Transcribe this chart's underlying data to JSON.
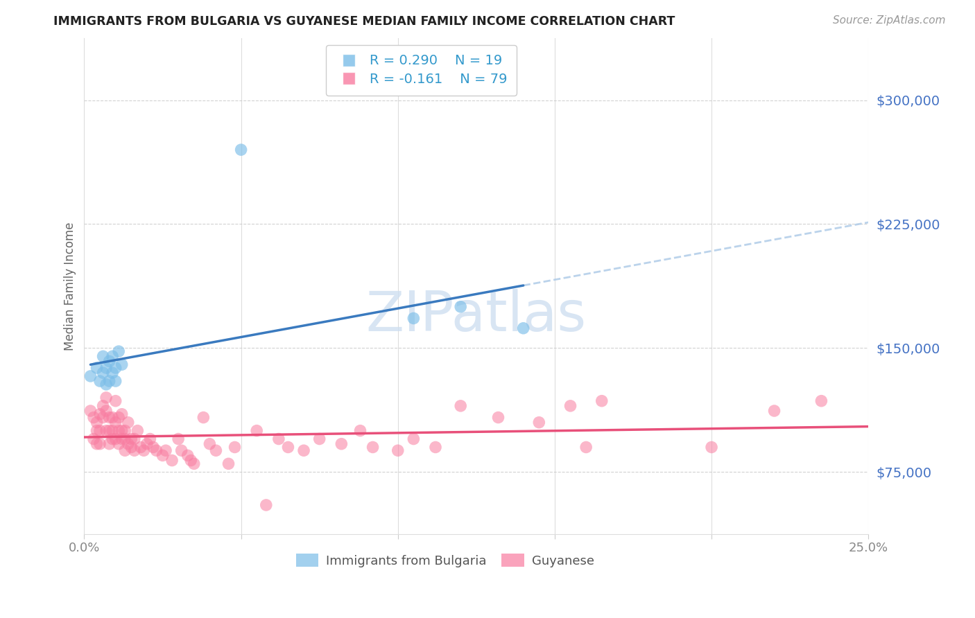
{
  "title": "IMMIGRANTS FROM BULGARIA VS GUYANESE MEDIAN FAMILY INCOME CORRELATION CHART",
  "source": "Source: ZipAtlas.com",
  "ylabel": "Median Family Income",
  "ytick_labels": [
    "$75,000",
    "$150,000",
    "$225,000",
    "$300,000"
  ],
  "ytick_values": [
    75000,
    150000,
    225000,
    300000
  ],
  "ymin": 37500,
  "ymax": 337500,
  "xmin": 0.0,
  "xmax": 0.25,
  "legend_r1": "R = 0.290",
  "legend_n1": "N = 19",
  "legend_r2": "R = -0.161",
  "legend_n2": "N = 79",
  "color_bulgaria": "#7bbde8",
  "color_guyanese": "#f87ca0",
  "color_bulgaria_line": "#3a7abf",
  "color_bulgaria_dash": "#b0cce8",
  "color_guyanese_line": "#e8507a",
  "color_ytick": "#4472c4",
  "bulgaria_x": [
    0.002,
    0.004,
    0.005,
    0.006,
    0.006,
    0.007,
    0.007,
    0.008,
    0.008,
    0.009,
    0.009,
    0.01,
    0.01,
    0.011,
    0.012,
    0.05,
    0.105,
    0.12,
    0.14
  ],
  "bulgaria_y": [
    133000,
    138000,
    130000,
    135000,
    145000,
    128000,
    138000,
    130000,
    142000,
    135000,
    145000,
    130000,
    138000,
    148000,
    140000,
    270000,
    168000,
    175000,
    162000
  ],
  "guyanese_x": [
    0.002,
    0.003,
    0.003,
    0.004,
    0.004,
    0.004,
    0.005,
    0.005,
    0.005,
    0.006,
    0.006,
    0.007,
    0.007,
    0.007,
    0.008,
    0.008,
    0.008,
    0.009,
    0.009,
    0.009,
    0.01,
    0.01,
    0.01,
    0.011,
    0.011,
    0.011,
    0.012,
    0.012,
    0.012,
    0.013,
    0.013,
    0.013,
    0.014,
    0.014,
    0.015,
    0.015,
    0.016,
    0.016,
    0.017,
    0.018,
    0.019,
    0.02,
    0.021,
    0.022,
    0.023,
    0.025,
    0.026,
    0.028,
    0.03,
    0.031,
    0.033,
    0.034,
    0.035,
    0.038,
    0.04,
    0.042,
    0.046,
    0.048,
    0.055,
    0.058,
    0.062,
    0.065,
    0.07,
    0.075,
    0.082,
    0.088,
    0.092,
    0.1,
    0.105,
    0.112,
    0.12,
    0.132,
    0.145,
    0.155,
    0.16,
    0.165,
    0.2,
    0.22,
    0.235
  ],
  "guyanese_y": [
    112000,
    95000,
    108000,
    100000,
    92000,
    105000,
    110000,
    100000,
    92000,
    115000,
    108000,
    100000,
    112000,
    120000,
    100000,
    108000,
    92000,
    95000,
    108000,
    100000,
    118000,
    105000,
    95000,
    100000,
    108000,
    92000,
    100000,
    110000,
    95000,
    88000,
    100000,
    95000,
    92000,
    105000,
    95000,
    90000,
    88000,
    95000,
    100000,
    90000,
    88000,
    92000,
    95000,
    90000,
    88000,
    85000,
    88000,
    82000,
    95000,
    88000,
    85000,
    82000,
    80000,
    108000,
    92000,
    88000,
    80000,
    90000,
    100000,
    55000,
    95000,
    90000,
    88000,
    95000,
    92000,
    100000,
    90000,
    88000,
    95000,
    90000,
    115000,
    108000,
    105000,
    115000,
    90000,
    118000,
    90000,
    112000,
    118000
  ]
}
